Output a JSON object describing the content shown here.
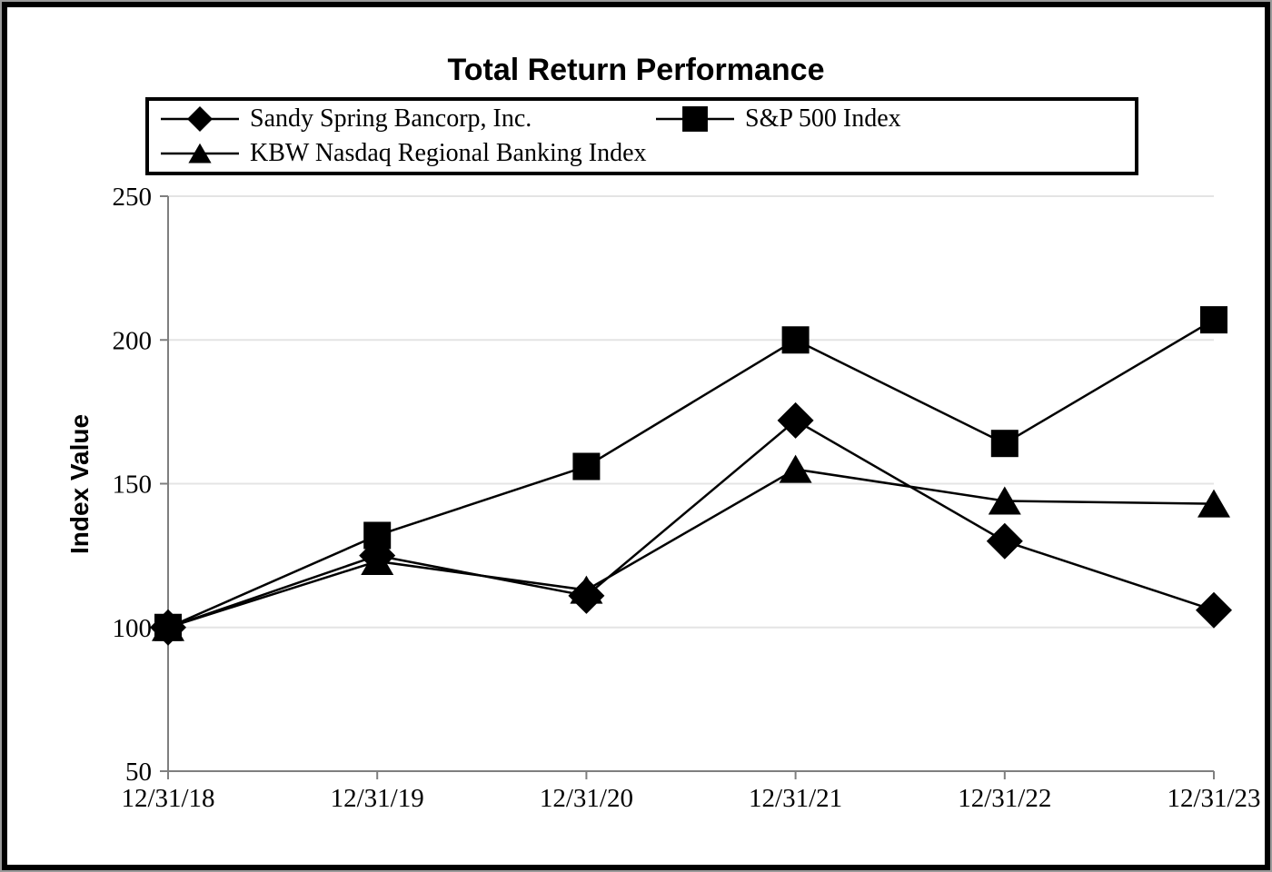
{
  "title": "Total Return Performance",
  "ylabel": "Index Value",
  "legend": {
    "items": [
      {
        "label": "Sandy Spring Bancorp, Inc.",
        "marker": "diamond"
      },
      {
        "label": "S&P 500 Index",
        "marker": "square"
      },
      {
        "label": "KBW Nasdaq Regional Banking Index",
        "marker": "triangle"
      }
    ]
  },
  "chart_data": {
    "type": "line",
    "title": "Total Return Performance",
    "xlabel": "",
    "ylabel": "Index Value",
    "categories": [
      "12/31/18",
      "12/31/19",
      "12/31/20",
      "12/31/21",
      "12/31/22",
      "12/31/23"
    ],
    "series": [
      {
        "name": "Sandy Spring Bancorp, Inc.",
        "marker": "diamond",
        "values": [
          100,
          125,
          111,
          172,
          130,
          106
        ]
      },
      {
        "name": "S&P 500 Index",
        "marker": "square",
        "values": [
          100,
          132,
          156,
          200,
          164,
          207
        ]
      },
      {
        "name": "KBW Nasdaq Regional Banking Index",
        "marker": "triangle",
        "values": [
          100,
          123,
          113,
          155,
          144,
          143
        ]
      }
    ],
    "ylim": [
      50,
      250
    ],
    "yticks": [
      50,
      100,
      150,
      200,
      250
    ],
    "grid": true,
    "legend_position": "top",
    "colors": {
      "series": "#000000",
      "grid": "#e4e4e4",
      "axis": "#7f7f7f",
      "background": "#ffffff"
    }
  }
}
